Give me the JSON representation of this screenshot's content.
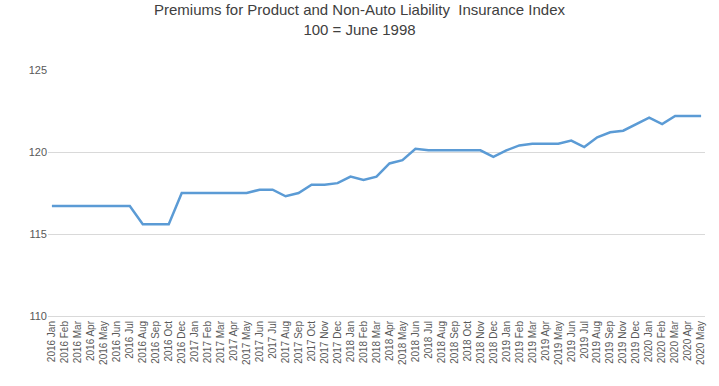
{
  "chart_data": {
    "type": "line",
    "title": "Premiums for Product and Non-Auto Liability  Insurance Index",
    "subtitle": "100 = June 1998",
    "categories": [
      "2016 Jan",
      "2016 Feb",
      "2016 Mar",
      "2016 Apr",
      "2016 May",
      "2016 Jun",
      "2016 Jul",
      "2016 Aug",
      "2016 Sep",
      "2016 Oct",
      "2016 Dec",
      "2017 Jan",
      "2017 Feb",
      "2017 Mar",
      "2017 Apr",
      "2017 May",
      "2017 Jun",
      "2017 Jul",
      "2017 Aug",
      "2017 Sep",
      "2017 Oct",
      "2017 Nov",
      "2017 Dec",
      "2018 Jan",
      "2018 Feb",
      "2018 Mar",
      "2018 Apr",
      "2018 May",
      "2018 Jun",
      "2018 Jul",
      "2018 Aug",
      "2018 Sep",
      "2018 Oct",
      "2018 Nov",
      "2018 Dec",
      "2019 Jan",
      "2019 Feb",
      "2019 Mar",
      "2019 Apr",
      "2019 May",
      "2019 Jun",
      "2019 Jul",
      "2019 Aug",
      "2019 Sep",
      "2019 Nov",
      "2019 Dec",
      "2020 Jan",
      "2020 Feb",
      "2020 Mar",
      "2020 Apr",
      "2020 May"
    ],
    "values": [
      116.7,
      116.7,
      116.7,
      116.7,
      116.7,
      116.7,
      116.7,
      115.6,
      115.6,
      115.6,
      117.5,
      117.5,
      117.5,
      117.5,
      117.5,
      117.5,
      117.7,
      117.7,
      117.3,
      117.5,
      118.0,
      118.0,
      118.1,
      118.5,
      118.3,
      118.5,
      119.3,
      119.5,
      120.2,
      120.1,
      120.1,
      120.1,
      120.1,
      120.1,
      119.7,
      120.1,
      120.4,
      120.5,
      120.5,
      120.5,
      120.7,
      120.3,
      120.9,
      121.2,
      121.3,
      121.7,
      122.1,
      121.7,
      122.2,
      122.2,
      122.2
    ],
    "color": "#5b9bd5",
    "ylim": [
      110,
      125
    ],
    "yticks": [
      110,
      115,
      120,
      125
    ],
    "grid": true
  }
}
